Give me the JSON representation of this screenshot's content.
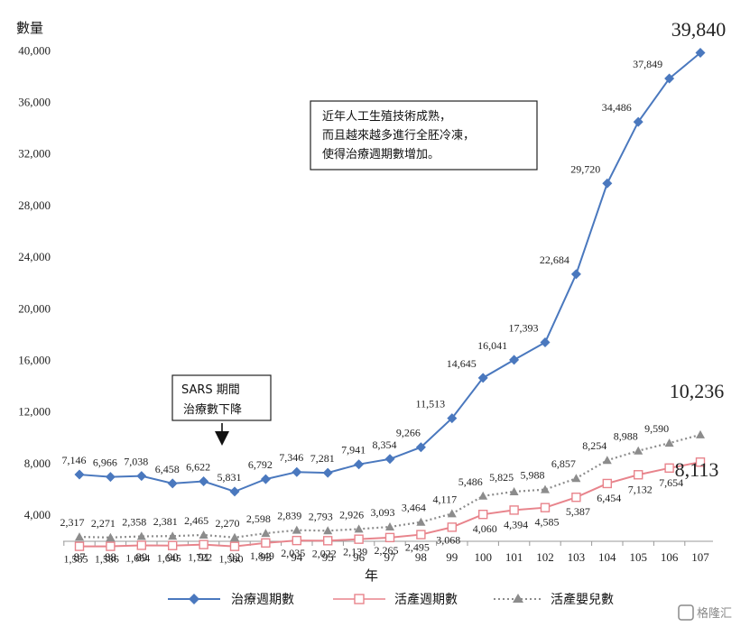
{
  "chart_data": {
    "type": "line",
    "ylabel": "數量",
    "xlabel": "年",
    "categories": [
      "87",
      "88",
      "89",
      "90",
      "91",
      "92",
      "93",
      "94",
      "95",
      "96",
      "97",
      "98",
      "99",
      "100",
      "101",
      "102",
      "103",
      "104",
      "105",
      "106",
      "107"
    ],
    "ylim": [
      0,
      40000
    ],
    "yticks": [
      4000,
      8000,
      12000,
      16000,
      20000,
      24000,
      28000,
      32000,
      36000,
      40000
    ],
    "ytick_labels": [
      "4,000",
      "8,000",
      "12,000",
      "16,000",
      "20,000",
      "24,000",
      "28,000",
      "32,000",
      "36,000",
      "40,000"
    ],
    "grid": false,
    "legend_position": "bottom",
    "series": [
      {
        "name": "治療週期數",
        "color": "#4a78be",
        "marker": "diamond",
        "line_style": "solid",
        "values": [
          7146,
          6966,
          7038,
          6458,
          6622,
          5831,
          6792,
          7346,
          7281,
          7941,
          8354,
          9266,
          11513,
          14645,
          16041,
          17393,
          22684,
          29720,
          34486,
          37849,
          39840
        ],
        "labels": [
          "7,146",
          "6,966",
          "7,038",
          "6,458",
          "6,622",
          "5,831",
          "6,792",
          "7,346",
          "7,281",
          "7,941",
          "8,354",
          "9,266",
          "11,513",
          "14,645",
          "16,041",
          "17,393",
          "22,684",
          "29,720",
          "34,486",
          "37,849",
          "39,840"
        ]
      },
      {
        "name": "活產週期數",
        "color": "#e8848c",
        "marker": "square",
        "line_style": "solid",
        "values": [
          1585,
          1586,
          1664,
          1645,
          1722,
          1580,
          1849,
          2035,
          2022,
          2139,
          2265,
          2495,
          3068,
          4060,
          4394,
          4585,
          5387,
          6454,
          7132,
          7654,
          8113
        ],
        "labels": [
          "1,585",
          "1,586",
          "1,664",
          "1,645",
          "1,722",
          "1,580",
          "1,849",
          "2,035",
          "2,022",
          "2,139",
          "2,265",
          "2,495",
          "3,068",
          "4,060",
          "4,394",
          "4,585",
          "5,387",
          "6,454",
          "7,132",
          "7,654",
          "8,113"
        ]
      },
      {
        "name": "活產嬰兒數",
        "color": "#8c8c8c",
        "marker": "triangle",
        "line_style": "dotted",
        "values": [
          2317,
          2271,
          2358,
          2381,
          2465,
          2270,
          2598,
          2839,
          2793,
          2926,
          3093,
          3464,
          4117,
          5486,
          5825,
          5988,
          6857,
          8254,
          8988,
          9590,
          10236
        ],
        "labels": [
          "2,317",
          "2,271",
          "2,358",
          "2,381",
          "2,465",
          "2,270",
          "2,598",
          "2,839",
          "2,793",
          "2,926",
          "3,093",
          "3,464",
          "4,117",
          "5,486",
          "5,825",
          "5,988",
          "6,857",
          "8,254",
          "8,988",
          "9,590",
          "10,236"
        ]
      }
    ],
    "annotations": [
      {
        "lines": [
          "近年人工生殖技術成熟，",
          "而且越來越多進行全胚冷凍，",
          "使得治療週期數增加。"
        ]
      },
      {
        "lines": [
          "SARS 期間",
          "治療數下降"
        ],
        "points_to_category": "92"
      }
    ]
  },
  "watermark": {
    "text": "格隆汇",
    "icon": "glh-logo-icon"
  }
}
